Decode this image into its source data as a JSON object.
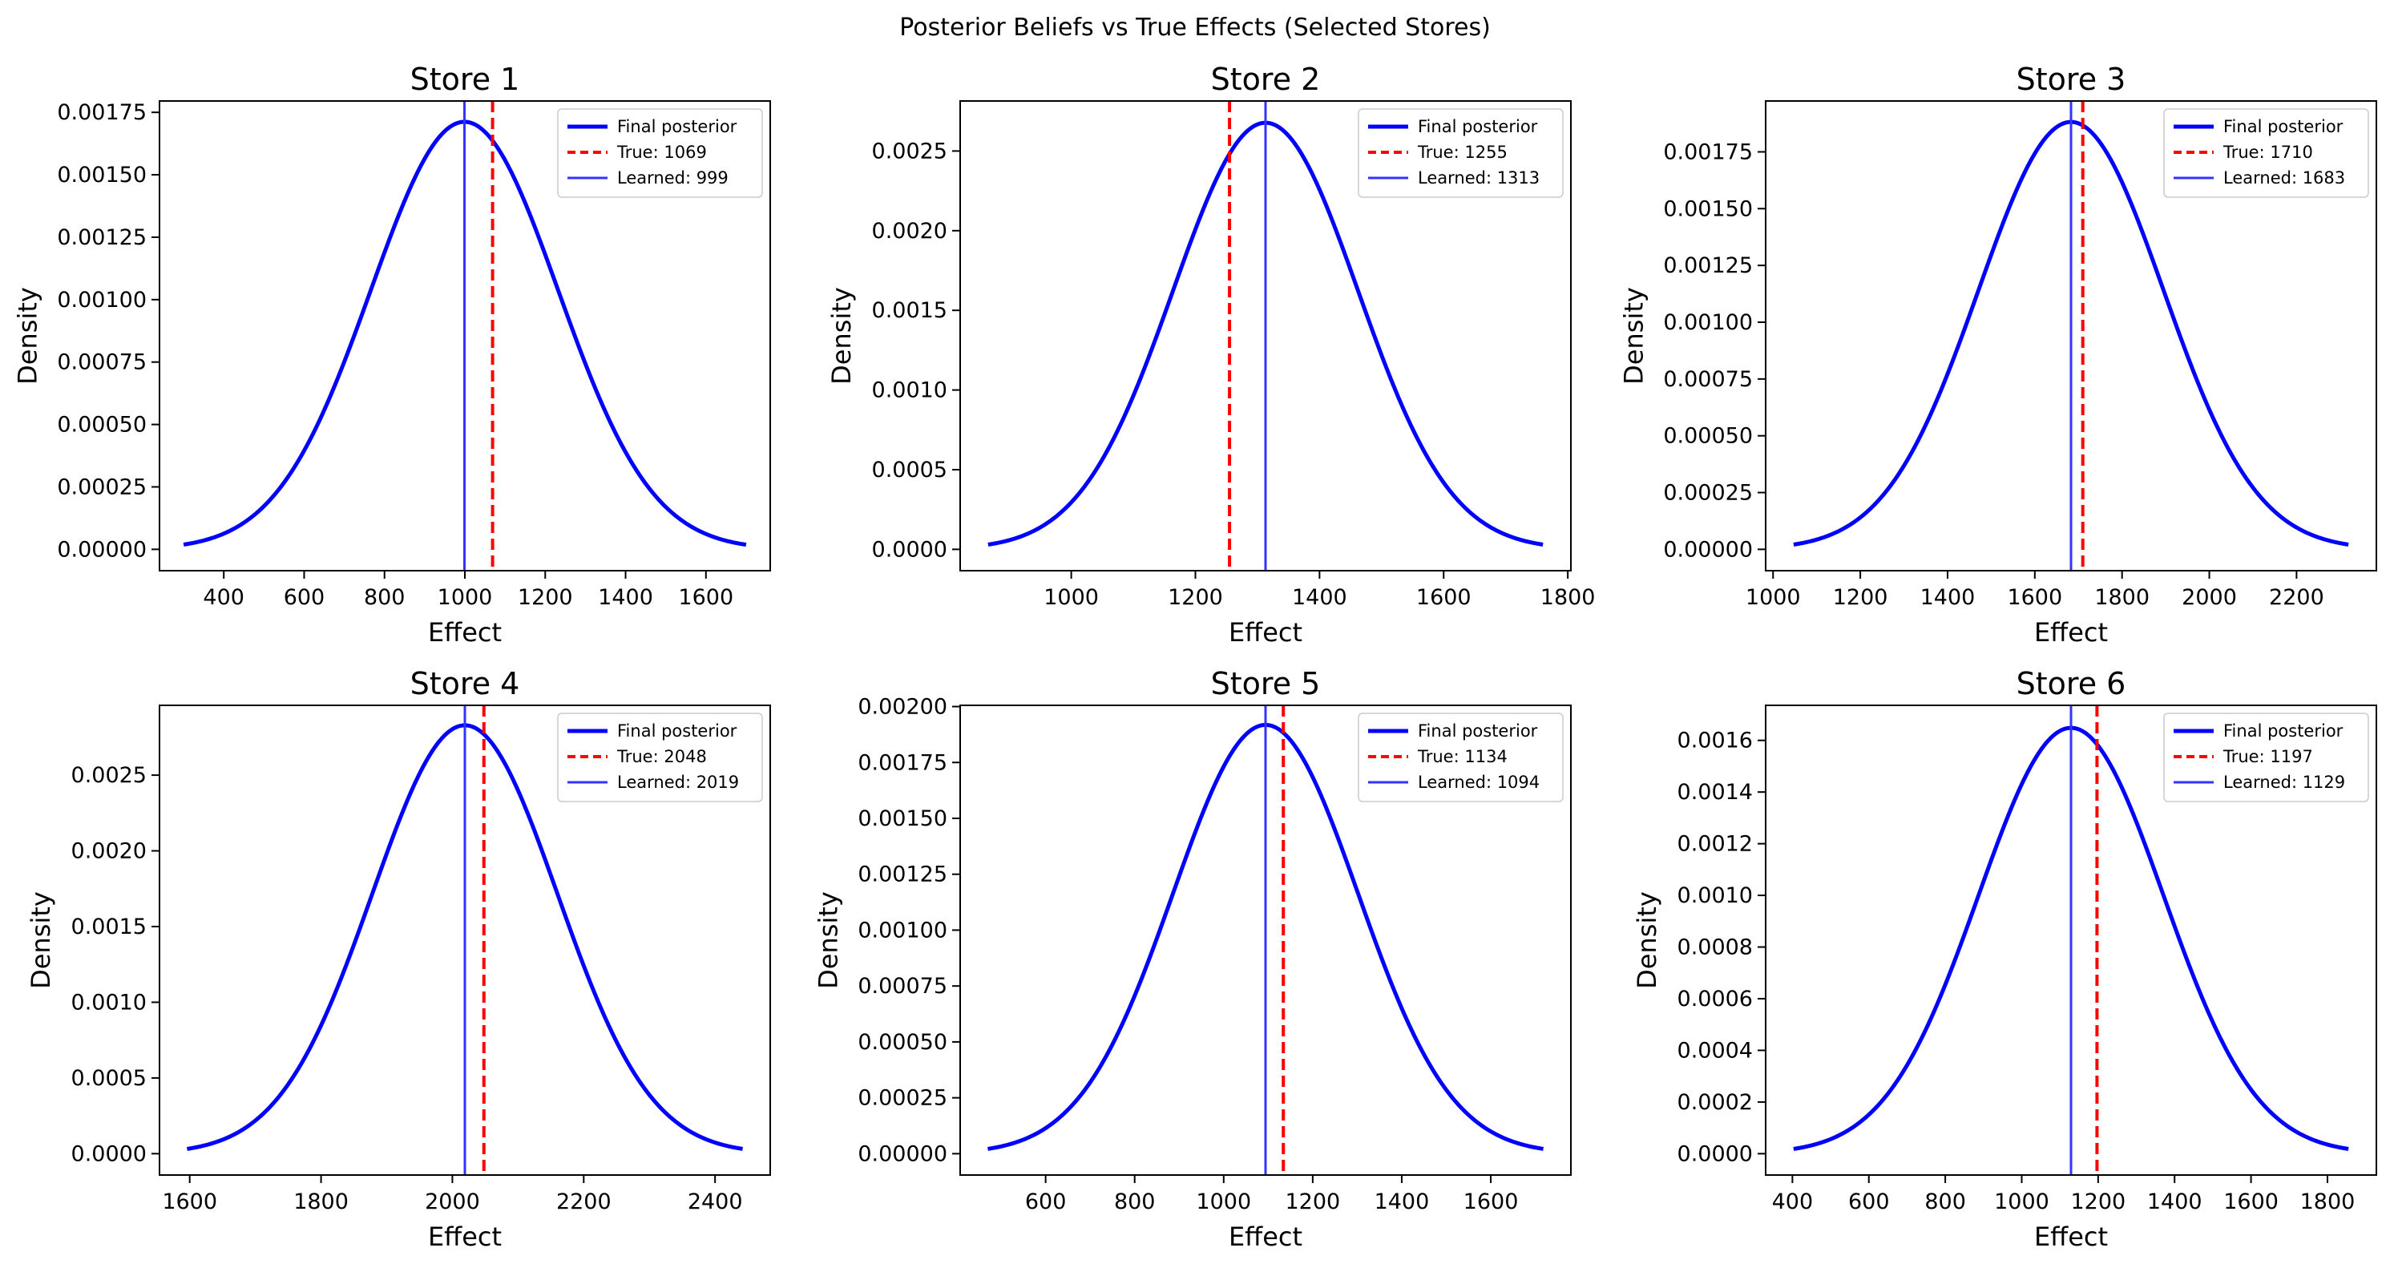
{
  "figure": {
    "suptitle": "Posterior Beliefs vs True Effects (Selected Stores)"
  },
  "style": {
    "posterior_color": "#0000ff",
    "true_color": "#ff0000",
    "learned_color": "#3333ff",
    "axes_color": "#000000",
    "background": "#ffffff"
  },
  "chart_data": [
    {
      "type": "line",
      "title": "Store 1",
      "xlabel": "Effect",
      "ylabel": "Density",
      "posterior": {
        "mean": 999,
        "sd": 233
      },
      "x_range": [
        300,
        1700
      ],
      "xlim": [
        240,
        1760
      ],
      "ylim": [
        -8.55e-05,
        0.0017955
      ],
      "xticks": [
        400,
        600,
        800,
        1000,
        1200,
        1400,
        1600
      ],
      "xtick_labels": [
        "400",
        "600",
        "800",
        "1000",
        "1200",
        "1400",
        "1600"
      ],
      "yticks": [
        0,
        0.00025,
        0.0005,
        0.00075,
        0.001,
        0.00125,
        0.0015,
        0.00175
      ],
      "ytick_labels": [
        "0.00000",
        "0.00025",
        "0.00050",
        "0.00075",
        "0.00100",
        "0.00125",
        "0.00150",
        "0.00175"
      ],
      "true_value": 1069,
      "learned_value": 999,
      "legend": [
        "Final posterior",
        "True: 1069",
        "Learned: 999"
      ],
      "legend_loc": "upper right",
      "grid": false
    },
    {
      "type": "line",
      "title": "Store 2",
      "xlabel": "Effect",
      "ylabel": "Density",
      "posterior": {
        "mean": 1313,
        "sd": 149
      },
      "x_range": [
        866,
        1760
      ],
      "xlim": [
        821,
        1805
      ],
      "ylim": [
        -0.000134,
        0.002814
      ],
      "xticks": [
        1000,
        1200,
        1400,
        1600,
        1800
      ],
      "xtick_labels": [
        "1000",
        "1200",
        "1400",
        "1600",
        "1800"
      ],
      "yticks": [
        0,
        0.0005,
        0.001,
        0.0015,
        0.002,
        0.0025
      ],
      "ytick_labels": [
        "0.0000",
        "0.0005",
        "0.0010",
        "0.0015",
        "0.0020",
        "0.0025"
      ],
      "true_value": 1255,
      "learned_value": 1313,
      "legend": [
        "Final posterior",
        "True: 1255",
        "Learned: 1313"
      ],
      "legend_loc": "upper right",
      "grid": false
    },
    {
      "type": "line",
      "title": "Store 3",
      "xlabel": "Effect",
      "ylabel": "Density",
      "posterior": {
        "mean": 1683,
        "sd": 212
      },
      "x_range": [
        1047,
        2319
      ],
      "xlim": [
        983,
        2383
      ],
      "ylim": [
        -9.4e-05,
        0.001974
      ],
      "xticks": [
        1000,
        1200,
        1400,
        1600,
        1800,
        2000,
        2200
      ],
      "xtick_labels": [
        "1000",
        "1200",
        "1400",
        "1600",
        "1800",
        "2000",
        "2200"
      ],
      "yticks": [
        0,
        0.00025,
        0.0005,
        0.00075,
        0.001,
        0.00125,
        0.0015,
        0.00175
      ],
      "ytick_labels": [
        "0.00000",
        "0.00025",
        "0.00050",
        "0.00075",
        "0.00100",
        "0.00125",
        "0.00150",
        "0.00175"
      ],
      "true_value": 1710,
      "learned_value": 1683,
      "legend": [
        "Final posterior",
        "True: 1710",
        "Learned: 1683"
      ],
      "legend_loc": "upper right",
      "grid": false
    },
    {
      "type": "line",
      "title": "Store 4",
      "xlabel": "Effect",
      "ylabel": "Density",
      "posterior": {
        "mean": 2019,
        "sd": 141
      },
      "x_range": [
        1596,
        2442
      ],
      "xlim": [
        1554,
        2484
      ],
      "ylim": [
        -0.000141,
        0.002961
      ],
      "xticks": [
        1600,
        1800,
        2000,
        2200,
        2400
      ],
      "xtick_labels": [
        "1600",
        "1800",
        "2000",
        "2200",
        "2400"
      ],
      "yticks": [
        0,
        0.0005,
        0.001,
        0.0015,
        0.002,
        0.0025
      ],
      "ytick_labels": [
        "0.0000",
        "0.0005",
        "0.0010",
        "0.0015",
        "0.0020",
        "0.0025"
      ],
      "true_value": 2048,
      "learned_value": 2019,
      "legend": [
        "Final posterior",
        "True: 2048",
        "Learned: 2019"
      ],
      "legend_loc": "upper right",
      "grid": false
    },
    {
      "type": "line",
      "title": "Store 5",
      "xlabel": "Effect",
      "ylabel": "Density",
      "posterior": {
        "mean": 1094,
        "sd": 208
      },
      "x_range": [
        470,
        1718
      ],
      "xlim": [
        408,
        1780
      ],
      "ylim": [
        -9.55e-05,
        0.0020055
      ],
      "xticks": [
        600,
        800,
        1000,
        1200,
        1400,
        1600
      ],
      "xtick_labels": [
        "600",
        "800",
        "1000",
        "1200",
        "1400",
        "1600"
      ],
      "yticks": [
        0,
        0.00025,
        0.0005,
        0.00075,
        0.001,
        0.00125,
        0.0015,
        0.00175,
        0.002
      ],
      "ytick_labels": [
        "0.00000",
        "0.00025",
        "0.00050",
        "0.00075",
        "0.00100",
        "0.00125",
        "0.00150",
        "0.00175",
        "0.00200"
      ],
      "true_value": 1134,
      "learned_value": 1094,
      "legend": [
        "Final posterior",
        "True: 1134",
        "Learned: 1094"
      ],
      "legend_loc": "upper right",
      "grid": false
    },
    {
      "type": "line",
      "title": "Store 6",
      "xlabel": "Effect",
      "ylabel": "Density",
      "posterior": {
        "mean": 1129,
        "sd": 242
      },
      "x_range": [
        403,
        1855
      ],
      "xlim": [
        330,
        1928
      ],
      "ylim": [
        -8.265e-05,
        0.00173565
      ],
      "xticks": [
        400,
        600,
        800,
        1000,
        1200,
        1400,
        1600,
        1800
      ],
      "xtick_labels": [
        "400",
        "600",
        "800",
        "1000",
        "1200",
        "1400",
        "1600",
        "1800"
      ],
      "yticks": [
        0,
        0.0002,
        0.0004,
        0.0006,
        0.0008,
        0.001,
        0.0012,
        0.0014,
        0.0016
      ],
      "ytick_labels": [
        "0.0000",
        "0.0002",
        "0.0004",
        "0.0006",
        "0.0008",
        "0.0010",
        "0.0012",
        "0.0014",
        "0.0016"
      ],
      "true_value": 1197,
      "learned_value": 1129,
      "legend": [
        "Final posterior",
        "True: 1197",
        "Learned: 1129"
      ],
      "legend_loc": "upper right",
      "grid": false
    }
  ]
}
